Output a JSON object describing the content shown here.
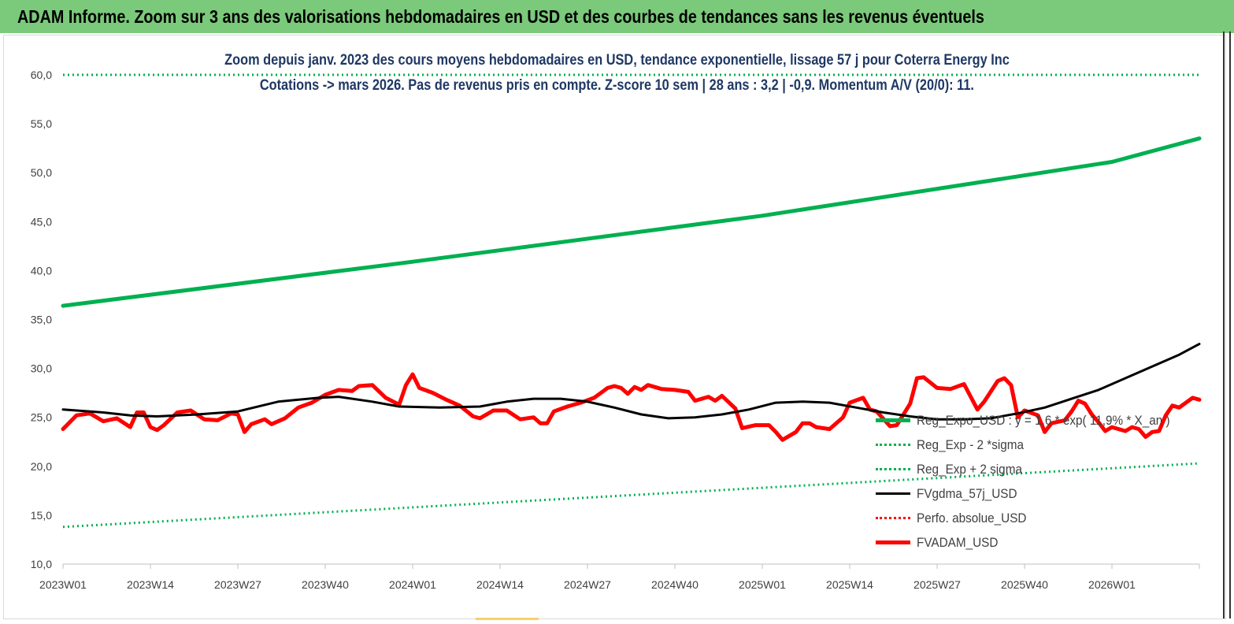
{
  "banner": {
    "title": "ADAM Informe. Zoom sur 3 ans des valorisations hebdomadaires en USD et des courbes de tendances sans les revenus éventuels"
  },
  "chart_data": {
    "type": "line",
    "title": "Zoom depuis janv. 2023 des cours moyens hebdomadaires en USD, tendance exponentielle, lissage 57 j pour Coterra Energy Inc",
    "subtitle": "Cotations -> mars 2026. Pas de revenus pris en compte. Z-score 10 sem | 28 ans : 3,2 | -0,9. Momentum A/V (20/0): 11.",
    "xlabel": "",
    "ylabel": "",
    "ylim": [
      10,
      60
    ],
    "yticks": [
      "10,0",
      "15,0",
      "20,0",
      "25,0",
      "30,0",
      "35,0",
      "40,0",
      "45,0",
      "50,0",
      "55,0",
      "60,0"
    ],
    "x_tick_labels": [
      "2023W01",
      "2023W14",
      "2023W27",
      "2023W40",
      "2024W01",
      "2024W14",
      "2024W27",
      "2024W40",
      "2025W01",
      "2025W14",
      "2025W27",
      "2025W40",
      "2026W01"
    ],
    "n_weeks": 170,
    "grid": false,
    "legend_position": "bottom-right",
    "series": [
      {
        "name": "Reg_Expo_USD : y = 1,6 * exp( 11,9% *  X_an )",
        "color": "#00b050",
        "style": "solid-thick",
        "points": [
          [
            0,
            36.4
          ],
          [
            52,
            40.9
          ],
          [
            104,
            45.6
          ],
          [
            156,
            51.1
          ],
          [
            169,
            53.5
          ]
        ]
      },
      {
        "name": "Reg_Exp - 2 *sigma",
        "color": "#00b050",
        "style": "dotted",
        "points": [
          [
            0,
            13.8
          ],
          [
            169,
            20.3
          ]
        ]
      },
      {
        "name": "Reg_Exp + 2 sigma",
        "color": "#00b050",
        "style": "dotted",
        "points": [
          [
            0,
            60.0
          ],
          [
            169,
            60.0
          ]
        ]
      },
      {
        "name": "FVgdma_57j_USD",
        "color": "#000000",
        "style": "solid",
        "points": [
          [
            0,
            25.8
          ],
          [
            6,
            25.5
          ],
          [
            10,
            25.2
          ],
          [
            14,
            25.1
          ],
          [
            20,
            25.3
          ],
          [
            26,
            25.6
          ],
          [
            32,
            26.6
          ],
          [
            38,
            27.0
          ],
          [
            41,
            27.1
          ],
          [
            46,
            26.6
          ],
          [
            50,
            26.1
          ],
          [
            56,
            26.0
          ],
          [
            62,
            26.1
          ],
          [
            66,
            26.6
          ],
          [
            70,
            26.9
          ],
          [
            74,
            26.9
          ],
          [
            78,
            26.6
          ],
          [
            82,
            26.0
          ],
          [
            86,
            25.3
          ],
          [
            90,
            24.9
          ],
          [
            94,
            25.0
          ],
          [
            98,
            25.3
          ],
          [
            102,
            25.8
          ],
          [
            106,
            26.5
          ],
          [
            110,
            26.6
          ],
          [
            114,
            26.5
          ],
          [
            118,
            26.0
          ],
          [
            122,
            25.5
          ],
          [
            126,
            25.1
          ],
          [
            130,
            24.8
          ],
          [
            134,
            24.8
          ],
          [
            138,
            24.9
          ],
          [
            142,
            25.4
          ],
          [
            146,
            26.0
          ],
          [
            150,
            26.9
          ],
          [
            154,
            27.8
          ],
          [
            158,
            29.0
          ],
          [
            162,
            30.2
          ],
          [
            166,
            31.4
          ],
          [
            169,
            32.5
          ]
        ]
      },
      {
        "name": "Perfo. absolue_USD",
        "color": "#ff0000",
        "style": "dotted",
        "points": []
      },
      {
        "name": "FVADAM_USD",
        "color": "#ff0000",
        "style": "solid-thick",
        "points": [
          [
            0,
            23.8
          ],
          [
            2,
            25.2
          ],
          [
            4,
            25.4
          ],
          [
            6,
            24.6
          ],
          [
            8,
            24.9
          ],
          [
            10,
            24.0
          ],
          [
            11,
            25.5
          ],
          [
            12,
            25.5
          ],
          [
            13,
            24.0
          ],
          [
            14,
            23.7
          ],
          [
            15,
            24.2
          ],
          [
            17,
            25.5
          ],
          [
            19,
            25.7
          ],
          [
            21,
            24.8
          ],
          [
            23,
            24.7
          ],
          [
            25,
            25.4
          ],
          [
            26,
            25.3
          ],
          [
            27,
            23.5
          ],
          [
            28,
            24.3
          ],
          [
            30,
            24.8
          ],
          [
            31,
            24.3
          ],
          [
            33,
            24.9
          ],
          [
            35,
            26.0
          ],
          [
            37,
            26.5
          ],
          [
            39,
            27.3
          ],
          [
            41,
            27.8
          ],
          [
            43,
            27.7
          ],
          [
            44,
            28.2
          ],
          [
            46,
            28.3
          ],
          [
            48,
            27.0
          ],
          [
            50,
            26.3
          ],
          [
            51,
            28.3
          ],
          [
            52,
            29.4
          ],
          [
            53,
            28.0
          ],
          [
            55,
            27.5
          ],
          [
            57,
            26.8
          ],
          [
            59,
            26.2
          ],
          [
            61,
            25.1
          ],
          [
            62,
            24.9
          ],
          [
            64,
            25.7
          ],
          [
            66,
            25.7
          ],
          [
            68,
            24.8
          ],
          [
            70,
            25.0
          ],
          [
            71,
            24.4
          ],
          [
            72,
            24.4
          ],
          [
            73,
            25.6
          ],
          [
            75,
            26.1
          ],
          [
            77,
            26.5
          ],
          [
            79,
            27.0
          ],
          [
            81,
            28.0
          ],
          [
            82,
            28.2
          ],
          [
            83,
            28.0
          ],
          [
            84,
            27.4
          ],
          [
            85,
            28.1
          ],
          [
            86,
            27.8
          ],
          [
            87,
            28.3
          ],
          [
            89,
            27.9
          ],
          [
            91,
            27.8
          ],
          [
            93,
            27.6
          ],
          [
            94,
            26.7
          ],
          [
            96,
            27.1
          ],
          [
            97,
            26.7
          ],
          [
            98,
            27.2
          ],
          [
            100,
            25.9
          ],
          [
            101,
            23.9
          ],
          [
            103,
            24.2
          ],
          [
            105,
            24.2
          ],
          [
            106,
            23.5
          ],
          [
            107,
            22.7
          ],
          [
            109,
            23.5
          ],
          [
            110,
            24.4
          ],
          [
            111,
            24.4
          ],
          [
            112,
            24.0
          ],
          [
            114,
            23.8
          ],
          [
            116,
            25.0
          ],
          [
            117,
            26.5
          ],
          [
            119,
            27.0
          ],
          [
            120,
            25.8
          ],
          [
            121,
            25.6
          ],
          [
            123,
            24.1
          ],
          [
            124,
            24.2
          ],
          [
            126,
            26.4
          ],
          [
            127,
            29.0
          ],
          [
            128,
            29.1
          ],
          [
            130,
            28.0
          ],
          [
            132,
            27.9
          ],
          [
            134,
            28.4
          ],
          [
            136,
            25.8
          ],
          [
            137,
            26.6
          ],
          [
            139,
            28.7
          ],
          [
            140,
            29.0
          ],
          [
            141,
            28.3
          ],
          [
            142,
            25.0
          ],
          [
            143,
            25.7
          ],
          [
            145,
            25.2
          ],
          [
            146,
            23.5
          ],
          [
            147,
            24.4
          ],
          [
            149,
            24.7
          ],
          [
            150,
            25.6
          ],
          [
            151,
            26.7
          ],
          [
            152,
            26.4
          ],
          [
            153,
            25.3
          ],
          [
            154,
            24.5
          ],
          [
            155,
            23.6
          ],
          [
            156,
            24.0
          ],
          [
            157,
            23.8
          ],
          [
            158,
            23.6
          ],
          [
            159,
            24.0
          ],
          [
            160,
            23.8
          ],
          [
            161,
            23.0
          ],
          [
            162,
            23.5
          ],
          [
            163,
            23.6
          ],
          [
            164,
            25.2
          ],
          [
            165,
            26.2
          ],
          [
            166,
            26.0
          ],
          [
            167,
            26.5
          ],
          [
            168,
            27.0
          ],
          [
            169,
            26.8
          ]
        ]
      }
    ]
  }
}
